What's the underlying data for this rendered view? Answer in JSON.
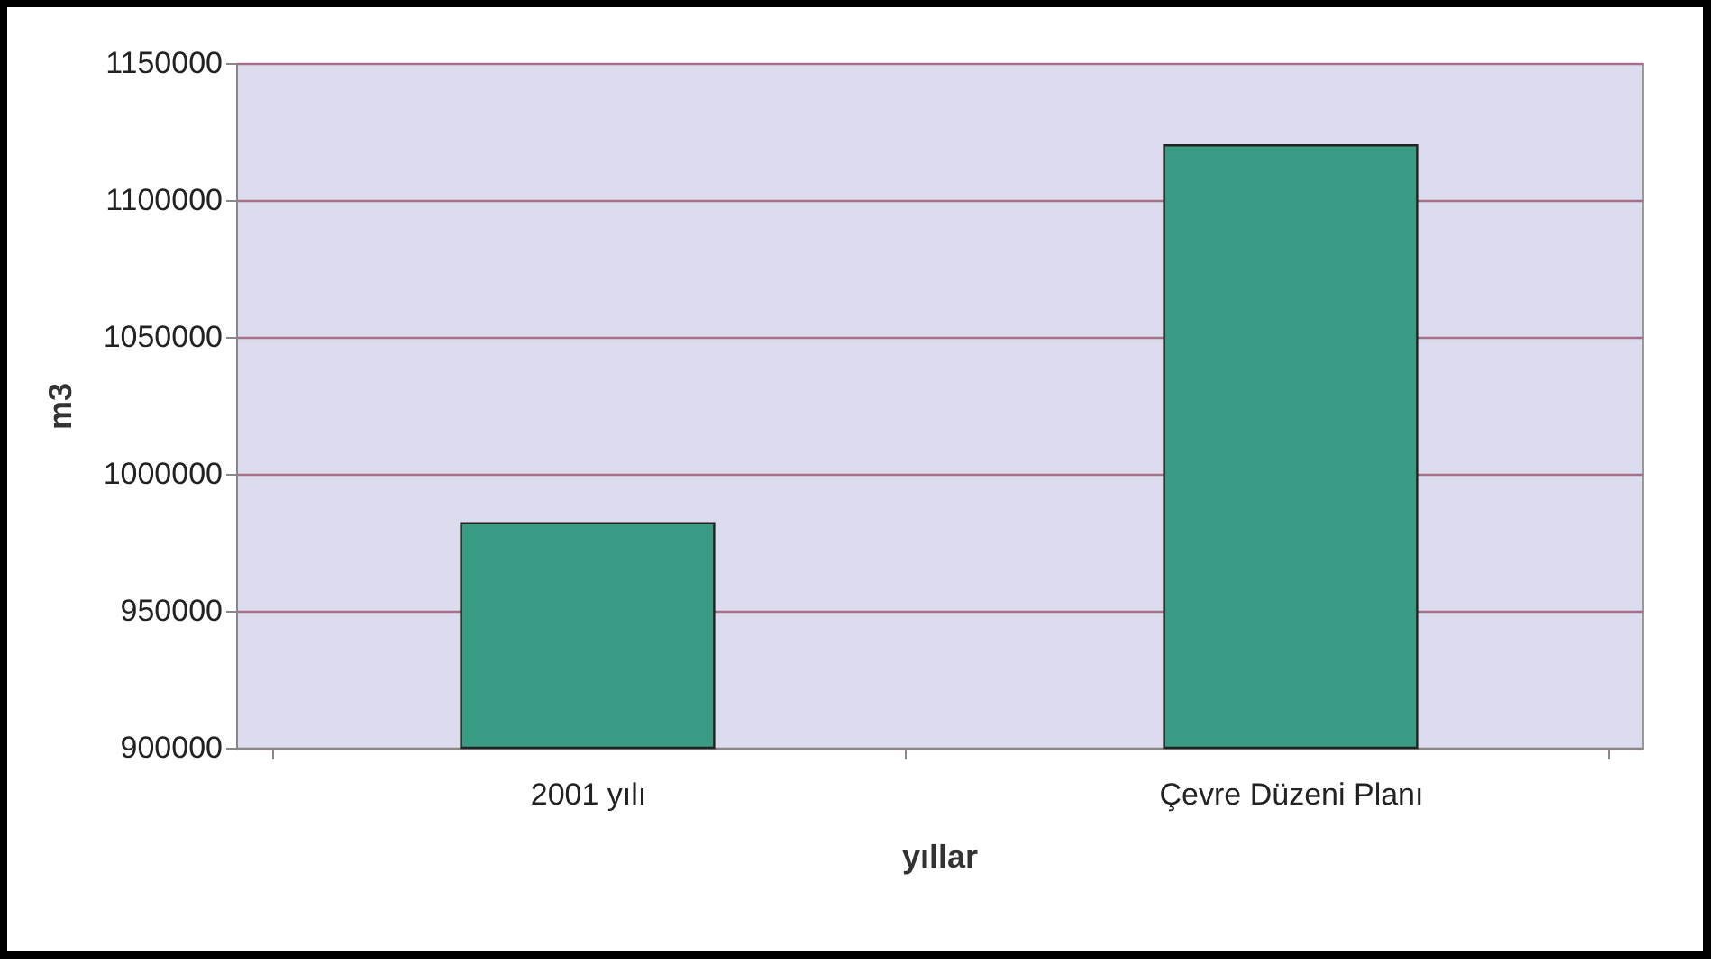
{
  "chart_data": {
    "type": "bar",
    "xlabel": "yıllar",
    "ylabel": "m3",
    "categories": [
      "2001 yılı",
      "Çevre Düzeni Planı"
    ],
    "values": [
      982000,
      1120000
    ],
    "color": "#3a9c84",
    "ylim": [
      900000,
      1150000
    ],
    "yticks": [
      900000,
      950000,
      1000000,
      1050000,
      1100000,
      1150000
    ],
    "grid": "y"
  }
}
